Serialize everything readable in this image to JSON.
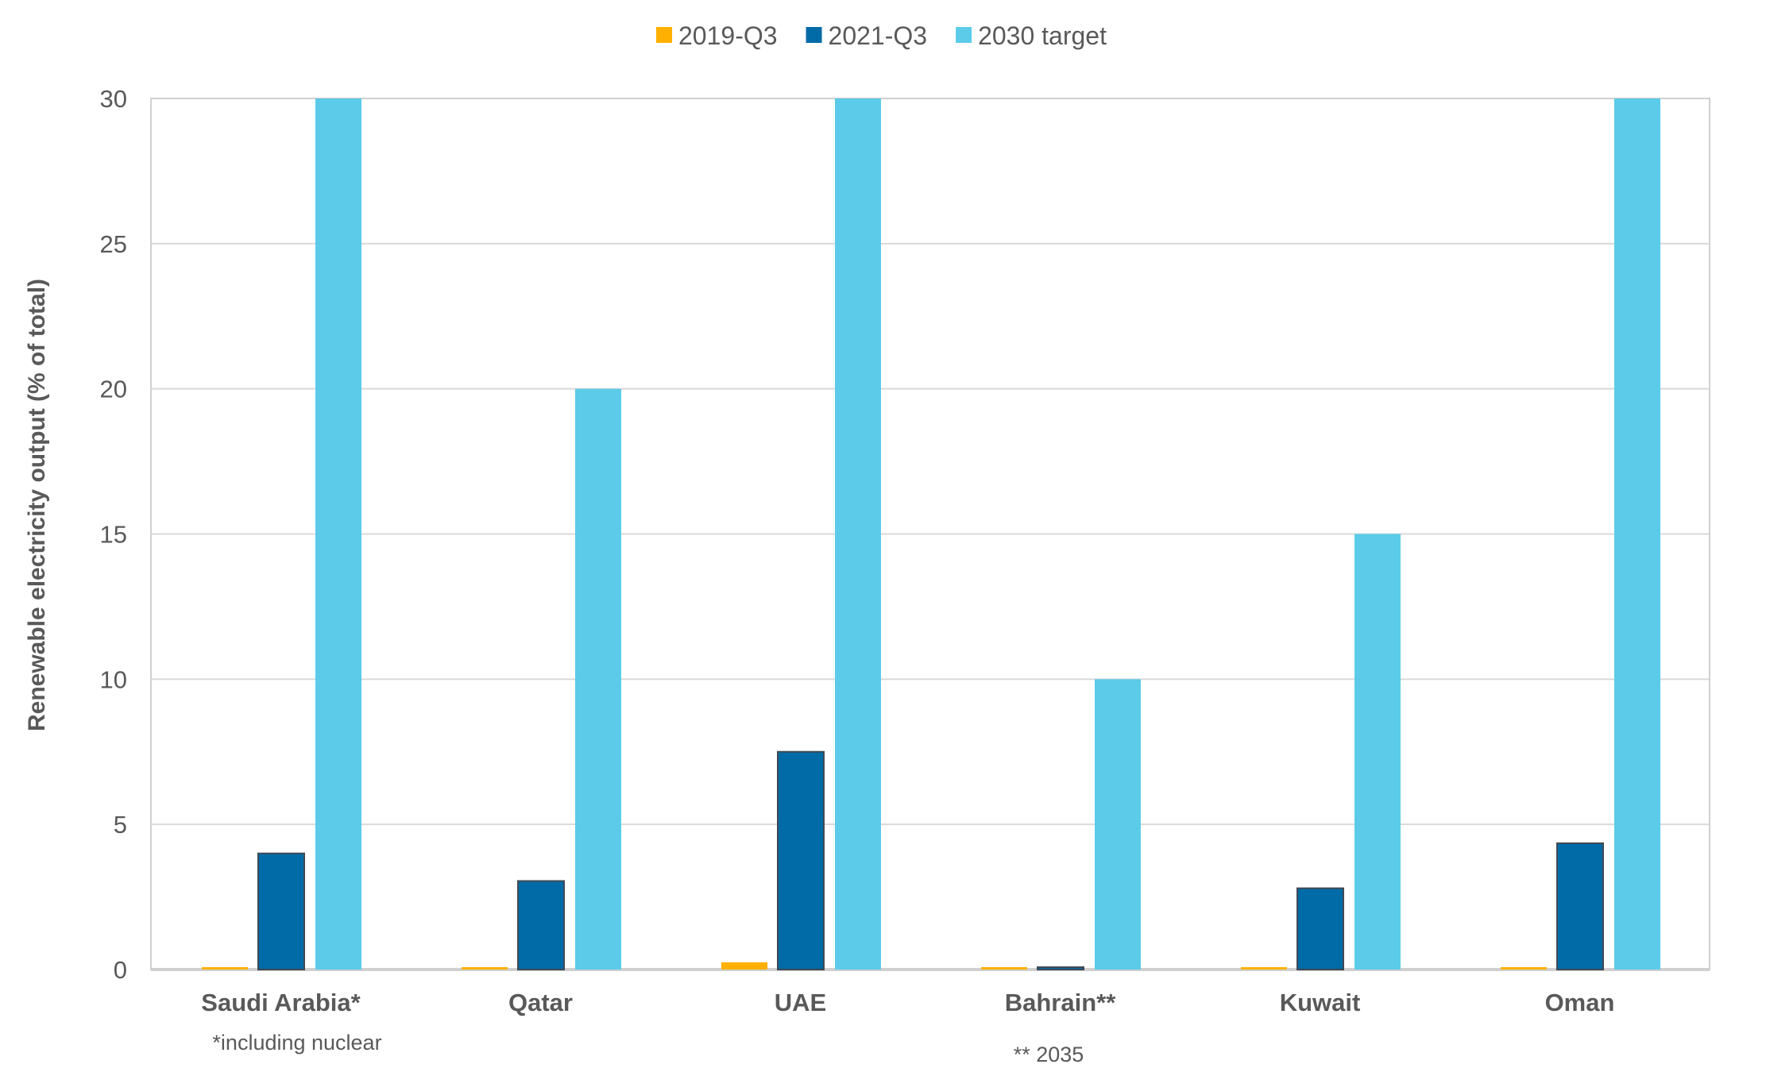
{
  "chart_data": {
    "type": "bar",
    "title": "",
    "xlabel": "",
    "ylabel": "Renewable electricity output (% of total)",
    "ylim": [
      0,
      30
    ],
    "yticks": [
      0,
      5,
      10,
      15,
      20,
      25,
      30
    ],
    "grid": true,
    "legend_position": "top",
    "categories": [
      "Saudi Arabia*",
      "Qatar",
      "UAE",
      "Bahrain**",
      "Kuwait",
      "Oman"
    ],
    "series": [
      {
        "name": "2019-Q3",
        "color": "#FFB000",
        "values": [
          0.05,
          0.05,
          0.25,
          0.05,
          0.05,
          0.05
        ]
      },
      {
        "name": "2021-Q3",
        "color": "#006BA6",
        "values": [
          4.0,
          3.05,
          7.5,
          0.05,
          2.8,
          4.35
        ]
      },
      {
        "name": "2030 target",
        "color": "#5BCBE9",
        "values": [
          30,
          20,
          30,
          10,
          15,
          30
        ]
      }
    ],
    "annotations": [
      "*including nuclear",
      "** 2035"
    ]
  }
}
